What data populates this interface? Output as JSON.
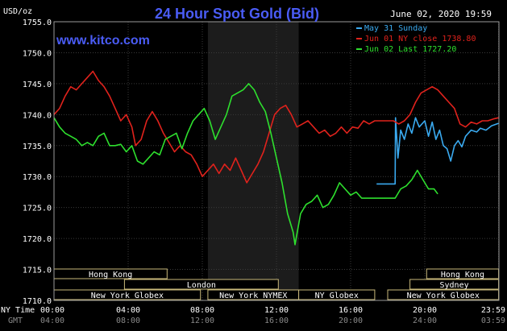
{
  "chart_data": {
    "type": "line",
    "title": "24 Hour Spot Gold (Bid)",
    "units_label": "USD/oz",
    "timestamp": "June 02, 2020 19:59",
    "website": "www.kitco.com",
    "ylim": [
      1710,
      1755
    ],
    "yticks": [
      "1755.0",
      "1750.0",
      "1745.0",
      "1740.0",
      "1735.0",
      "1730.0",
      "1725.0",
      "1720.0",
      "1715.0",
      "1710.0"
    ],
    "xlim": [
      0,
      24
    ],
    "xticks_ny": [
      "00:00",
      "04:00",
      "08:00",
      "12:00",
      "16:00",
      "20:00",
      "23:59"
    ],
    "xticks_gmt": [
      "04:00",
      "08:00",
      "12:00",
      "16:00",
      "20:00",
      "24:00",
      "03:59"
    ],
    "x_row_labels": {
      "ny": "NY Time",
      "gmt": "GMT"
    },
    "shaded_session_hours": [
      8.3,
      13.2
    ],
    "grid": true,
    "legend_position": "top-right",
    "legend": [
      {
        "label": "May 31 Sunday",
        "color": "#3aaaf0"
      },
      {
        "label": "Jun 01 NY close 1738.80",
        "color": "#e0221c"
      },
      {
        "label": "Jun 02 Last 1727.20",
        "color": "#2ee02e"
      }
    ],
    "series": [
      {
        "name": "May 31 Sunday",
        "color": "#3aaaf0",
        "points": [
          [
            17.4,
            1728.8
          ],
          [
            18.4,
            1728.8
          ],
          [
            18.42,
            1739.5
          ],
          [
            18.55,
            1733
          ],
          [
            18.7,
            1737.5
          ],
          [
            18.9,
            1736
          ],
          [
            19.1,
            1738.5
          ],
          [
            19.3,
            1737
          ],
          [
            19.5,
            1739.5
          ],
          [
            19.7,
            1738
          ],
          [
            20.0,
            1739
          ],
          [
            20.2,
            1736.5
          ],
          [
            20.4,
            1738.8
          ],
          [
            20.6,
            1736
          ],
          [
            20.8,
            1737.5
          ],
          [
            21.0,
            1735
          ],
          [
            21.2,
            1734.5
          ],
          [
            21.4,
            1732.5
          ],
          [
            21.6,
            1735
          ],
          [
            21.8,
            1735.8
          ],
          [
            22.0,
            1734.8
          ],
          [
            22.2,
            1736.5
          ],
          [
            22.5,
            1737.5
          ],
          [
            22.8,
            1737.2
          ],
          [
            23.0,
            1737.8
          ],
          [
            23.3,
            1737.5
          ],
          [
            23.6,
            1738.2
          ],
          [
            23.98,
            1738.6
          ]
        ]
      },
      {
        "name": "Jun 01 NY close 1738.80",
        "color": "#e0221c",
        "points": [
          [
            0,
            1740
          ],
          [
            0.3,
            1741
          ],
          [
            0.6,
            1743
          ],
          [
            0.9,
            1744.5
          ],
          [
            1.2,
            1744
          ],
          [
            1.5,
            1745
          ],
          [
            1.8,
            1746
          ],
          [
            2.1,
            1747
          ],
          [
            2.4,
            1745.5
          ],
          [
            2.7,
            1744.5
          ],
          [
            3.0,
            1743
          ],
          [
            3.3,
            1741
          ],
          [
            3.6,
            1739
          ],
          [
            3.9,
            1740
          ],
          [
            4.2,
            1738
          ],
          [
            4.4,
            1735
          ],
          [
            4.7,
            1736
          ],
          [
            5.0,
            1739
          ],
          [
            5.3,
            1740.5
          ],
          [
            5.6,
            1739
          ],
          [
            5.9,
            1737
          ],
          [
            6.2,
            1735.5
          ],
          [
            6.5,
            1734
          ],
          [
            6.8,
            1735
          ],
          [
            7.1,
            1734
          ],
          [
            7.4,
            1733.5
          ],
          [
            7.7,
            1732
          ],
          [
            8.0,
            1730
          ],
          [
            8.3,
            1731
          ],
          [
            8.6,
            1732
          ],
          [
            8.9,
            1730.5
          ],
          [
            9.2,
            1732
          ],
          [
            9.5,
            1731
          ],
          [
            9.8,
            1733
          ],
          [
            10.1,
            1731
          ],
          [
            10.4,
            1729
          ],
          [
            10.7,
            1730.5
          ],
          [
            11.0,
            1732
          ],
          [
            11.3,
            1734
          ],
          [
            11.6,
            1737
          ],
          [
            11.9,
            1740
          ],
          [
            12.2,
            1741
          ],
          [
            12.5,
            1741.5
          ],
          [
            12.8,
            1740
          ],
          [
            13.1,
            1738
          ],
          [
            13.4,
            1738.5
          ],
          [
            13.7,
            1739
          ],
          [
            14.0,
            1738
          ],
          [
            14.3,
            1737
          ],
          [
            14.6,
            1737.5
          ],
          [
            14.9,
            1736.5
          ],
          [
            15.2,
            1737
          ],
          [
            15.5,
            1738
          ],
          [
            15.8,
            1737
          ],
          [
            16.1,
            1738
          ],
          [
            16.4,
            1737.8
          ],
          [
            16.7,
            1739
          ],
          [
            17.0,
            1738.5
          ],
          [
            17.3,
            1739
          ],
          [
            17.6,
            1739
          ],
          [
            18.0,
            1739
          ],
          [
            18.3,
            1739
          ],
          [
            18.6,
            1738.5
          ],
          [
            18.9,
            1739
          ],
          [
            19.2,
            1740
          ],
          [
            19.5,
            1742
          ],
          [
            19.8,
            1743.5
          ],
          [
            20.1,
            1744
          ],
          [
            20.4,
            1744.5
          ],
          [
            20.7,
            1744
          ],
          [
            21.0,
            1743
          ],
          [
            21.3,
            1742
          ],
          [
            21.6,
            1741
          ],
          [
            21.9,
            1738.5
          ],
          [
            22.2,
            1738
          ],
          [
            22.5,
            1738.8
          ],
          [
            22.8,
            1738.5
          ],
          [
            23.1,
            1739
          ],
          [
            23.4,
            1739
          ],
          [
            23.7,
            1739.3
          ],
          [
            23.98,
            1739.5
          ]
        ]
      },
      {
        "name": "Jun 02 Last 1727.20",
        "color": "#2ee02e",
        "points": [
          [
            0,
            1739.5
          ],
          [
            0.3,
            1738
          ],
          [
            0.6,
            1737
          ],
          [
            0.9,
            1736.5
          ],
          [
            1.2,
            1736
          ],
          [
            1.5,
            1735
          ],
          [
            1.8,
            1735.5
          ],
          [
            2.1,
            1735
          ],
          [
            2.4,
            1736.5
          ],
          [
            2.7,
            1737
          ],
          [
            3.0,
            1735
          ],
          [
            3.3,
            1735
          ],
          [
            3.6,
            1735.2
          ],
          [
            3.9,
            1734
          ],
          [
            4.2,
            1735
          ],
          [
            4.5,
            1732.5
          ],
          [
            4.8,
            1732
          ],
          [
            5.1,
            1733
          ],
          [
            5.4,
            1734
          ],
          [
            5.7,
            1733.5
          ],
          [
            6.0,
            1736
          ],
          [
            6.3,
            1736.5
          ],
          [
            6.6,
            1737
          ],
          [
            6.9,
            1734.5
          ],
          [
            7.2,
            1737
          ],
          [
            7.5,
            1739
          ],
          [
            7.8,
            1740
          ],
          [
            8.1,
            1741
          ],
          [
            8.4,
            1739
          ],
          [
            8.7,
            1736
          ],
          [
            9.0,
            1738
          ],
          [
            9.3,
            1740
          ],
          [
            9.6,
            1743
          ],
          [
            9.9,
            1743.5
          ],
          [
            10.2,
            1744
          ],
          [
            10.5,
            1745
          ],
          [
            10.8,
            1744
          ],
          [
            11.1,
            1742
          ],
          [
            11.4,
            1740.5
          ],
          [
            11.7,
            1737
          ],
          [
            12.0,
            1733
          ],
          [
            12.3,
            1729
          ],
          [
            12.6,
            1724
          ],
          [
            12.9,
            1721
          ],
          [
            13.0,
            1719
          ],
          [
            13.3,
            1724
          ],
          [
            13.6,
            1725.5
          ],
          [
            13.9,
            1726
          ],
          [
            14.2,
            1727
          ],
          [
            14.5,
            1725
          ],
          [
            14.8,
            1725.5
          ],
          [
            15.1,
            1727
          ],
          [
            15.4,
            1729
          ],
          [
            15.7,
            1728
          ],
          [
            16.0,
            1727
          ],
          [
            16.3,
            1727.5
          ],
          [
            16.6,
            1726.5
          ],
          [
            16.9,
            1726.5
          ],
          [
            17.2,
            1726.5
          ],
          [
            17.5,
            1726.5
          ],
          [
            17.8,
            1726.5
          ],
          [
            18.1,
            1726.5
          ],
          [
            18.4,
            1726.5
          ],
          [
            18.7,
            1728
          ],
          [
            19.0,
            1728.5
          ],
          [
            19.3,
            1729.5
          ],
          [
            19.6,
            1731
          ],
          [
            19.9,
            1729.5
          ],
          [
            20.2,
            1728
          ],
          [
            20.5,
            1728
          ],
          [
            20.7,
            1727.2
          ]
        ]
      }
    ],
    "session_rows": [
      [
        {
          "label": "Hong Kong",
          "start": 0,
          "end": 6.1
        },
        {
          "label": "Hong Kong",
          "start": 20.1,
          "end": 23.98
        }
      ],
      [
        {
          "label": "London",
          "start": 3.8,
          "end": 12.1
        },
        {
          "label": "Sydney",
          "start": 19.2,
          "end": 23.98
        }
      ],
      [
        {
          "label": "New York Globex",
          "start": 0,
          "end": 7.9
        },
        {
          "label": "New York NYMEX",
          "start": 8.3,
          "end": 13.2
        },
        {
          "label": "NY Globex",
          "start": 13.2,
          "end": 17.3
        },
        {
          "label": "New York Globex",
          "start": 18.0,
          "end": 23.98
        }
      ]
    ]
  }
}
